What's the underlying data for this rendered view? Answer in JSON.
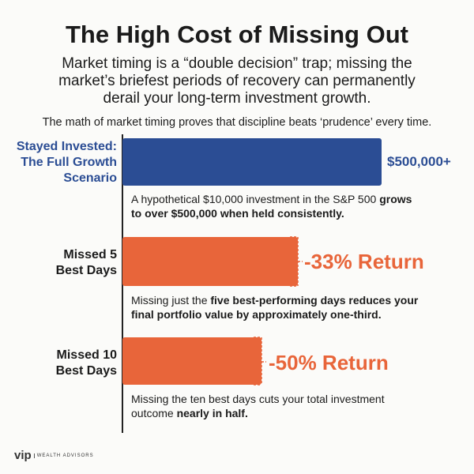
{
  "header": {
    "title": "The High Cost of Missing Out",
    "subtitle_parts": [
      "Market timing is a “double decision” trap; ",
      "missing the market’s briefest periods of recovery can permanently derail your long-term investment growth."
    ],
    "tagline": "The math of market timing proves that discipline beats ‘prudence’ every time."
  },
  "scenarios": [
    {
      "label": [
        "Stayed Invested:",
        "The Full Growth",
        "Scenario"
      ],
      "result": "$500,000+",
      "description": [
        "A hypothetical $10,000 investment in the S&P 500 ",
        "grows to over $500,000 when held consistently."
      ]
    },
    {
      "label": [
        "Missed 5",
        "Best Days"
      ],
      "result": "-33% Return",
      "description": [
        "Missing just the ",
        "five best-performing days reduces your final portfolio value by approximately one-third."
      ]
    },
    {
      "label": [
        "Missed 10",
        "Best Days"
      ],
      "result": "-50% Return",
      "description": [
        "Missing the ten best days cuts your total investment outcome ",
        "nearly in half."
      ]
    }
  ],
  "footer": {
    "brand": "vip",
    "brand_sub": "WEALTH ADVISORS"
  }
}
